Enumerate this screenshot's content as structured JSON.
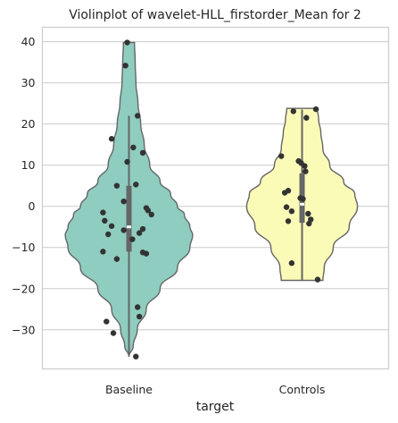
{
  "chart_data": {
    "type": "violin",
    "title": "Violinplot of wavelet-HLL_firstorder_Mean for 2",
    "xlabel": "target",
    "ylabel": "",
    "categories": [
      "Baseline",
      "Controls"
    ],
    "ylim": [
      -39.5,
      43.5
    ],
    "yticks": [
      -30,
      -20,
      -10,
      0,
      10,
      20,
      30,
      40
    ],
    "grid": true,
    "colors": {
      "Baseline": "#8ecdc0",
      "Controls": "#fbfbb8",
      "edge": "#666666",
      "point": "#333333"
    },
    "violins": [
      {
        "name": "Baseline",
        "min": -36.5,
        "max": 39.8,
        "q1": -11,
        "median": -5,
        "q3": 5,
        "whisker_low": -36.5,
        "whisker_high": 22,
        "density": [
          [
            -36.5,
            0.0
          ],
          [
            -34,
            0.06
          ],
          [
            -30,
            0.12
          ],
          [
            -25,
            0.25
          ],
          [
            -20,
            0.45
          ],
          [
            -15,
            0.7
          ],
          [
            -10,
            0.88
          ],
          [
            -7,
            0.92
          ],
          [
            -5,
            0.88
          ],
          [
            -2,
            0.8
          ],
          [
            0,
            0.7
          ],
          [
            3,
            0.6
          ],
          [
            6,
            0.45
          ],
          [
            10,
            0.3
          ],
          [
            15,
            0.22
          ],
          [
            20,
            0.17
          ],
          [
            25,
            0.13
          ],
          [
            30,
            0.1
          ],
          [
            35,
            0.09
          ],
          [
            39.8,
            0.08
          ]
        ],
        "points": [
          [
            39.8,
            -0.02
          ],
          [
            34.2,
            -0.04
          ],
          [
            22,
            0.1
          ],
          [
            16.4,
            -0.2
          ],
          [
            14.3,
            0.05
          ],
          [
            13,
            0.16
          ],
          [
            10.8,
            -0.02
          ],
          [
            5.3,
            0.08
          ],
          [
            5,
            -0.14
          ],
          [
            1.2,
            -0.06
          ],
          [
            -0.4,
            0.2
          ],
          [
            -1,
            0.22
          ],
          [
            -1.5,
            -0.3
          ],
          [
            -2,
            0.26
          ],
          [
            -3.5,
            -0.28
          ],
          [
            -4.8,
            -0.2
          ],
          [
            -5.5,
            0.16
          ],
          [
            -5.8,
            -0.06
          ],
          [
            -6.5,
            0.12
          ],
          [
            -6.8,
            -0.24
          ],
          [
            -8,
            0.04
          ],
          [
            -11.2,
            0.16
          ],
          [
            -11,
            -0.3
          ],
          [
            -11.5,
            0.2
          ],
          [
            -12.8,
            -0.14
          ],
          [
            -24.5,
            0.1
          ],
          [
            -26.8,
            0.12
          ],
          [
            -28,
            -0.26
          ],
          [
            -30.8,
            -0.18
          ],
          [
            -36.5,
            0.08
          ]
        ]
      },
      {
        "name": "Controls",
        "min": -18,
        "max": 23.8,
        "q1": -4,
        "median": 0.5,
        "q3": 8,
        "whisker_low": -18,
        "whisker_high": 23.5,
        "density": [
          [
            -18,
            0.3
          ],
          [
            -15,
            0.32
          ],
          [
            -10,
            0.45
          ],
          [
            -5,
            0.68
          ],
          [
            0,
            0.8
          ],
          [
            3,
            0.76
          ],
          [
            6,
            0.6
          ],
          [
            10,
            0.4
          ],
          [
            14,
            0.3
          ],
          [
            18,
            0.27
          ],
          [
            21,
            0.24
          ],
          [
            23.8,
            0.22
          ]
        ],
        "points": [
          [
            23.6,
            0.16
          ],
          [
            23.1,
            -0.1
          ],
          [
            21.5,
            0.05
          ],
          [
            12.2,
            -0.24
          ],
          [
            11,
            -0.04
          ],
          [
            10.5,
            -0.01
          ],
          [
            9.8,
            0.03
          ],
          [
            8.5,
            0.04
          ],
          [
            3.8,
            -0.16
          ],
          [
            3.3,
            -0.2
          ],
          [
            2,
            -0.02
          ],
          [
            1.8,
            0.01
          ],
          [
            -0.2,
            -0.18
          ],
          [
            -1.2,
            -0.12
          ],
          [
            -1.8,
            0.07
          ],
          [
            -3.2,
            0.1
          ],
          [
            -3.6,
            -0.16
          ],
          [
            -4.2,
            0.08
          ],
          [
            -13.8,
            -0.12
          ],
          [
            -17.8,
            0.18
          ]
        ]
      }
    ]
  }
}
